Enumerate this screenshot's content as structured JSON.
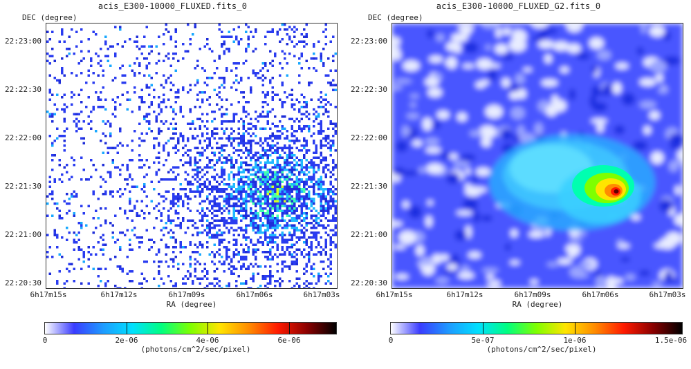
{
  "panels": [
    {
      "title": "acis_E300-10000_FLUXED.fits_0",
      "y_axis_label": "DEC (degree)",
      "x_axis_label": "RA (degree)",
      "y_ticks": [
        "22:23:00",
        "22:22:30",
        "22:22:00",
        "22:21:30",
        "22:21:00",
        "22:20:30"
      ],
      "x_ticks": [
        "6h17m15s",
        "6h17m12s",
        "6h17m09s",
        "6h17m06s",
        "6h17m03s"
      ],
      "colorbar_ticks": [
        "0",
        "2e-06",
        "4e-06",
        "6e-06"
      ],
      "colorbar_unit": "(photons/cm^2/sec/pixel)",
      "image_style": "sparse-counts"
    },
    {
      "title": "acis_E300-10000_FLUXED_G2.fits_0",
      "y_axis_label": "DEC (degree)",
      "x_axis_label": "RA (degree)",
      "y_ticks": [
        "22:23:00",
        "22:22:30",
        "22:22:00",
        "22:21:30",
        "22:21:00",
        "22:20:30"
      ],
      "x_ticks": [
        "6h17m15s",
        "6h17m12s",
        "6h17m09s",
        "6h17m06s",
        "6h17m03s"
      ],
      "colorbar_ticks": [
        "0",
        "5e-07",
        "1e-06",
        "1.5e-06"
      ],
      "colorbar_unit": "(photons/cm^2/sec/pixel)",
      "image_style": "smoothed-gaussian"
    }
  ],
  "colormap": [
    "#ffffff",
    "#3a3cff",
    "#1e9bff",
    "#00e0ff",
    "#00ff80",
    "#7fff00",
    "#ffe400",
    "#ff8c00",
    "#ff1a00",
    "#8a0000",
    "#000000"
  ]
}
